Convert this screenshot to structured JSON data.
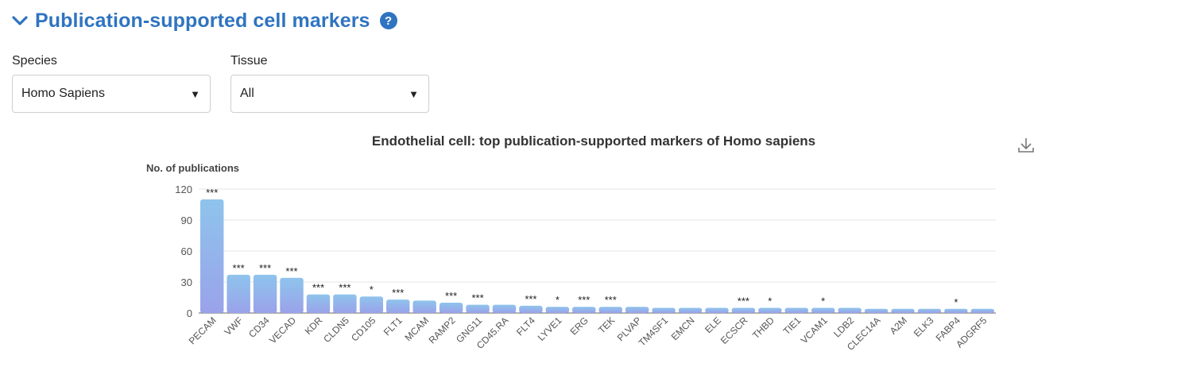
{
  "header": {
    "title": "Publication-supported cell markers",
    "collapse_icon": "chevron-down-icon",
    "help_icon": "question-icon",
    "help_glyph": "?"
  },
  "filters": {
    "species": {
      "label": "Species",
      "value": "Homo Sapiens"
    },
    "tissue": {
      "label": "Tissue",
      "value": "All"
    },
    "caret_glyph": "▼"
  },
  "colors": {
    "accent": "#2f74c0",
    "bar_top": "#8ec4ec",
    "bar_bottom": "#9aa2ea",
    "grid": "#e6e6e6",
    "axis": "#666666"
  },
  "chart_data": {
    "type": "bar",
    "title": "Endothelial cell: top publication-supported markers of Homo sapiens",
    "ylabel": "No. of publications",
    "xlabel": "",
    "ylim": [
      0,
      120
    ],
    "yticks": [
      0,
      30,
      60,
      90,
      120
    ],
    "grid": true,
    "categories": [
      "PECAM",
      "VWF",
      "CD34",
      "VECAD",
      "KDR",
      "CLDN5",
      "CD105",
      "FLT1",
      "MCAM",
      "RAMP2",
      "GNG11",
      "CD45.RA",
      "FLT4",
      "LYVE1",
      "ERG",
      "TEK",
      "PLVAP",
      "TM4SF1",
      "EMCN",
      "ELE",
      "ECSCR",
      "THBD",
      "TIE1",
      "VCAM1",
      "LDB2",
      "CLEC14A",
      "A2M",
      "ELK3",
      "FABP4",
      "ADGRF5"
    ],
    "values": [
      110,
      37,
      37,
      34,
      18,
      18,
      16,
      13,
      12,
      10,
      8,
      8,
      7,
      6,
      6,
      6,
      6,
      5,
      5,
      5,
      5,
      5,
      5,
      5,
      5,
      4,
      4,
      4,
      4,
      4
    ],
    "significance": [
      "***",
      "***",
      "***",
      "***",
      "***",
      "***",
      "*",
      "***",
      "",
      "***",
      "***",
      "",
      "***",
      "*",
      "***",
      "***",
      "",
      "",
      "",
      "",
      "***",
      "*",
      "",
      "*",
      "",
      "",
      "",
      "",
      "*",
      ""
    ]
  },
  "toolbar": {
    "download_icon": "download-icon"
  }
}
